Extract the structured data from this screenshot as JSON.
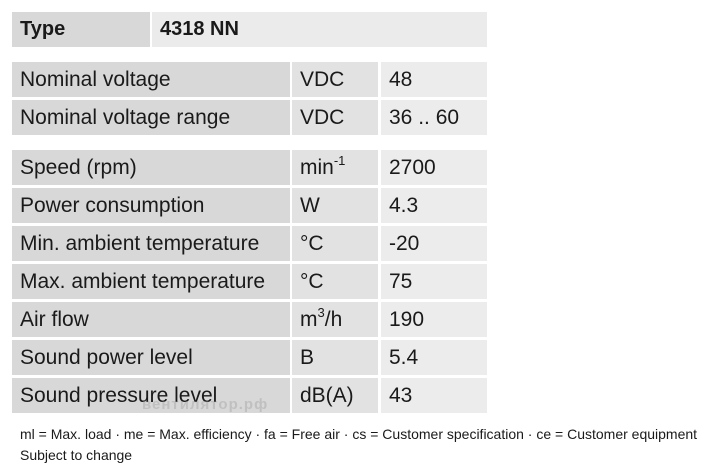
{
  "header": {
    "label": "Type",
    "value": "4318 NN"
  },
  "groups": [
    [
      {
        "label": "Nominal voltage",
        "unit": "VDC",
        "value": "48"
      },
      {
        "label": "Nominal voltage range",
        "unit": "VDC",
        "value": "36 .. 60"
      }
    ],
    [
      {
        "label": "Speed (rpm)",
        "unit": {
          "base": "min",
          "sup": "-1"
        },
        "value": "2700"
      },
      {
        "label": "Power consumption",
        "unit": "W",
        "value": "4.3"
      },
      {
        "label": "Min. ambient temperature",
        "unit": "°C",
        "value": "-20"
      },
      {
        "label": "Max. ambient temperature",
        "unit": "°C",
        "value": "75"
      },
      {
        "label": "Air flow",
        "unit": {
          "base": "m",
          "sup": "3",
          "tail": "/h"
        },
        "value": "190"
      },
      {
        "label": "Sound power level",
        "unit": "B",
        "value": "5.4"
      },
      {
        "label": "Sound pressure level",
        "unit": "dB(A)",
        "value": "43"
      }
    ]
  ],
  "watermark": "вентилятор.рф",
  "footer": [
    "ml = Max. load · me = Max. efficiency · fa = Free air · cs = Customer specification · ce = Customer equipment",
    "Subject to change"
  ]
}
